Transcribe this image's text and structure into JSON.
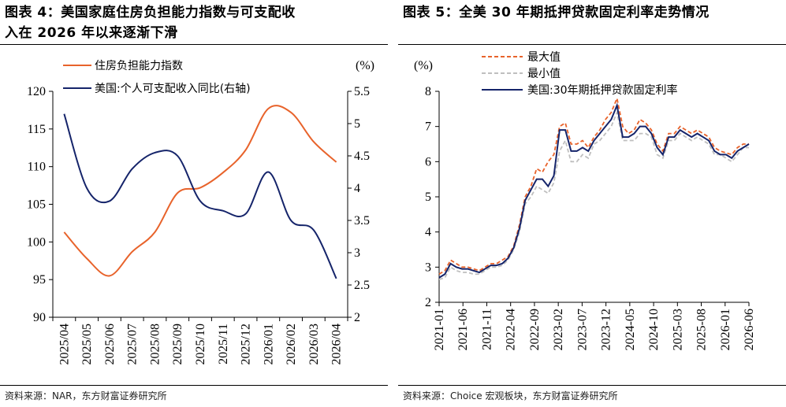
{
  "left": {
    "title_line1": "图表 4：美国家庭住房负担能力指数与可支配收",
    "title_line2": "入在 2026 年以来逐渐下滑",
    "source": "资料来源：NAR，东方财富证券研究所",
    "unit_label": "(%)",
    "chart_data": {
      "type": "line",
      "categories": [
        "2025/04",
        "2025/05",
        "2025/06",
        "2025/07",
        "2025/08",
        "2025/09",
        "2025/10",
        "2025/11",
        "2025/12",
        "2026/01",
        "2026/02",
        "2026/03",
        "2026/04"
      ],
      "series": [
        {
          "name": "住房负担能力指数",
          "axis": "left",
          "color": "#E8632B",
          "values": [
            101.3,
            97.8,
            95.5,
            98.7,
            101.3,
            106.5,
            107.2,
            109.2,
            112.2,
            117.7,
            117.2,
            113.3,
            110.6
          ]
        },
        {
          "name": "美国:个人可支配收入同比(右轴)",
          "axis": "right",
          "color": "#15246A",
          "values": [
            5.15,
            4.0,
            3.8,
            4.3,
            4.55,
            4.5,
            3.8,
            3.65,
            3.6,
            4.25,
            3.5,
            3.35,
            2.6
          ]
        }
      ],
      "y_left": {
        "min": 90,
        "max": 120,
        "ticks": [
          "90",
          "95",
          "100",
          "105",
          "110",
          "115",
          "120"
        ]
      },
      "y_right": {
        "min": 2,
        "max": 5.5,
        "ticks": [
          "2",
          "2.5",
          "3",
          "3.5",
          "4",
          "4.5",
          "5",
          "5.5"
        ]
      },
      "legend": [
        "住房负担能力指数",
        "美国:个人可支配收入同比(右轴)"
      ],
      "legend_position": "top"
    }
  },
  "right": {
    "title": "图表 5：全美 30 年期抵押贷款固定利率走势情况",
    "source": "资料来源：Choice 宏观板块，东方财富证券研究所",
    "unit_label": "(%)",
    "chart_data": {
      "type": "line",
      "x_ticks": [
        "2021-01",
        "2021-06",
        "2021-11",
        "2022-04",
        "2022-09",
        "2023-02",
        "2023-07",
        "2023-12",
        "2024-05",
        "2024-10",
        "2025-03",
        "2025-08",
        "2026-01",
        "2026-06"
      ],
      "y": {
        "min": 2,
        "max": 8,
        "ticks": [
          "2",
          "3",
          "4",
          "5",
          "6",
          "7",
          "8"
        ]
      },
      "legend": [
        "最大值",
        "最小值",
        "美国:30年期抵押贷款固定利率"
      ],
      "legend_position": "top",
      "series": [
        {
          "name": "最大值",
          "style": "dashed",
          "color": "#E8632B",
          "values": [
            2.8,
            2.9,
            3.2,
            3.1,
            3.0,
            3.0,
            2.95,
            2.9,
            3.0,
            3.1,
            3.1,
            3.2,
            3.3,
            3.6,
            4.2,
            5.0,
            5.3,
            5.8,
            5.7,
            6.0,
            6.2,
            7.0,
            7.1,
            6.5,
            6.5,
            6.6,
            6.4,
            6.7,
            6.9,
            7.2,
            7.4,
            7.8,
            7.0,
            6.8,
            6.9,
            7.2,
            7.1,
            6.9,
            6.5,
            6.3,
            6.8,
            6.8,
            7.0,
            6.9,
            6.8,
            6.9,
            6.8,
            6.7,
            6.4,
            6.3,
            6.25,
            6.2,
            6.4,
            6.5,
            6.5
          ]
        },
        {
          "name": "最小值",
          "style": "dashed",
          "color": "#BFBFBF",
          "values": [
            2.65,
            2.7,
            3.0,
            2.9,
            2.85,
            2.85,
            2.8,
            2.8,
            2.9,
            3.0,
            3.0,
            3.05,
            3.2,
            3.5,
            4.0,
            4.8,
            5.0,
            5.3,
            5.2,
            5.1,
            5.4,
            6.3,
            6.6,
            6.0,
            6.0,
            6.2,
            6.1,
            6.5,
            6.6,
            6.8,
            7.0,
            7.4,
            6.6,
            6.6,
            6.6,
            6.8,
            6.8,
            6.7,
            6.2,
            6.1,
            6.6,
            6.6,
            6.8,
            6.7,
            6.6,
            6.7,
            6.6,
            6.5,
            6.2,
            6.2,
            6.1,
            6.0,
            6.2,
            6.4,
            6.4
          ]
        },
        {
          "name": "美国:30年期抵押贷款固定利率",
          "style": "solid",
          "color": "#15246A",
          "values": [
            2.7,
            2.8,
            3.1,
            3.0,
            2.95,
            2.95,
            2.9,
            2.85,
            2.95,
            3.05,
            3.05,
            3.1,
            3.25,
            3.55,
            4.1,
            4.9,
            5.2,
            5.5,
            5.5,
            5.3,
            5.6,
            6.9,
            6.9,
            6.3,
            6.3,
            6.4,
            6.3,
            6.6,
            6.8,
            7.0,
            7.2,
            7.6,
            6.7,
            6.7,
            6.8,
            7.0,
            7.0,
            6.8,
            6.4,
            6.2,
            6.7,
            6.7,
            6.9,
            6.8,
            6.7,
            6.8,
            6.7,
            6.6,
            6.3,
            6.2,
            6.2,
            6.1,
            6.3,
            6.4,
            6.5
          ]
        }
      ]
    }
  }
}
